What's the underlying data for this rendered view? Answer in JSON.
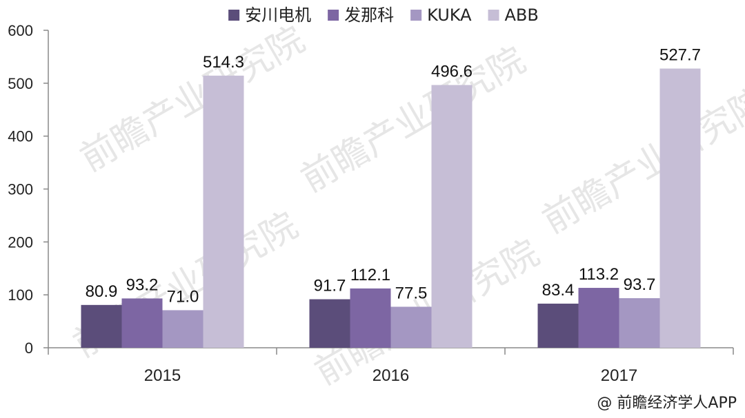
{
  "chart_data": {
    "type": "bar",
    "categories": [
      "2015",
      "2016",
      "2017"
    ],
    "series": [
      {
        "name": "安川电机",
        "color": "#5b4d7a",
        "values": [
          80.9,
          91.7,
          83.4
        ],
        "labels": [
          "80.9",
          "91.7",
          "83.4"
        ]
      },
      {
        "name": "发那科",
        "color": "#7d66a3",
        "values": [
          93.2,
          112.1,
          113.2
        ],
        "labels": [
          "93.2",
          "112.1",
          "113.2"
        ]
      },
      {
        "name": "KUKA",
        "color": "#a497c2",
        "values": [
          71.0,
          77.5,
          93.7
        ],
        "labels": [
          "71.0",
          "77.5",
          "93.7"
        ]
      },
      {
        "name": "ABB",
        "color": "#c6bed6",
        "values": [
          514.3,
          496.6,
          527.7
        ],
        "labels": [
          "514.3",
          "496.6",
          "527.7"
        ]
      }
    ],
    "ylim": [
      0,
      600
    ],
    "yticks": [
      "0",
      "100",
      "200",
      "300",
      "400",
      "500",
      "600"
    ],
    "legend_position": "top",
    "grid": false
  },
  "watermark": "前瞻产业研究院",
  "source": "@ 前瞻经济学人APP"
}
